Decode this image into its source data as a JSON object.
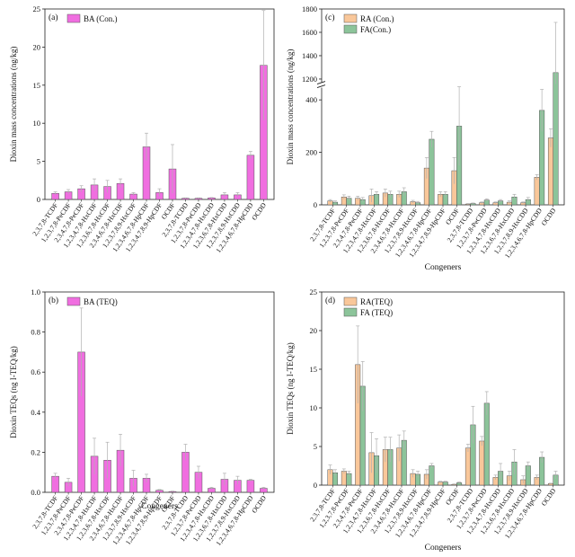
{
  "colors": {
    "pink": "#f06ee0",
    "orange": "#f9c79a",
    "green": "#8cc49a",
    "axis": "#222222",
    "error": "#b0b0b0"
  },
  "chart_data": [
    {
      "id": "a",
      "panel_label": "(a)",
      "type": "bar",
      "ylabel": "Dioxin mass concentrations (ng/kg)",
      "xlabel": "",
      "ylim": [
        0,
        25
      ],
      "yticks": [
        0,
        5,
        10,
        15,
        20,
        25
      ],
      "legend_position": "top-left",
      "categories": [
        "2,3,7,8-TCDF",
        "1,2,3,7,8-PeCDF",
        "2,3,4,7,8-PeCDF",
        "1,2,3,4,7,8-HxCDF",
        "1,2,3,6,7,8-HxCDF",
        "2,3,4,6,7,8-HxCDF",
        "1,2,3,7,8,9-HxCDF",
        "1,2,3,4,6,7,8-HpCDF",
        "1,2,3,4,7,8,9-HpCDF",
        "OCDF",
        "2,3,7,8-TCDD",
        "1,2,3,7,8-PeCDD",
        "1,2,3,4,7,8-HxCDD",
        "1,2,3,6,7,8-HxCDD",
        "1,2,3,7,8,9-HxCDD",
        "1,2,3,4,6,7,8-HpCDD",
        "OCDD"
      ],
      "series": [
        {
          "name": "BA (Con.)",
          "color": "#f06ee0",
          "values": [
            0.8,
            1.0,
            1.4,
            1.9,
            1.7,
            2.1,
            0.7,
            6.9,
            0.9,
            4.0,
            0.15,
            0.15,
            0.2,
            0.6,
            0.6,
            5.8,
            17.6
          ],
          "errors": [
            0.2,
            0.3,
            0.4,
            0.8,
            0.8,
            0.6,
            0.2,
            1.8,
            0.5,
            3.2,
            0.05,
            0.05,
            0.05,
            0.3,
            0.3,
            0.5,
            7.2
          ]
        }
      ]
    },
    {
      "id": "c",
      "panel_label": "(c)",
      "type": "bar",
      "ylabel": "Dioxin mass concentrations (ng/kg)",
      "xlabel": "Congeners",
      "ylim": [
        0,
        1800
      ],
      "axis_break": [
        450,
        1180
      ],
      "yticks": [
        0,
        200,
        400,
        1200,
        1400,
        1600,
        1800
      ],
      "legend_position": "top-left",
      "categories": [
        "2,3,7,8-TCDF",
        "1,2,3,7,8-PeCDF",
        "2,3,4,7,8-PeCDF",
        "1,2,3,4,7,8-HxCDF",
        "1,2,3,6,7,8-HxCDF",
        "2,3,4,6,7,8-HxCDF",
        "1,2,3,7,8,9-HxCDF",
        "1,2,3,4,6,7,8-HpCDF",
        "1,2,3,4,7,8,9-HpCDF",
        "OCDF",
        "2,3,7,8-TCDD",
        "1,2,3,7,8-PeCDD",
        "1,2,3,4,7,8-HxCDD",
        "1,2,3,6,7,8-HxCDD",
        "1,2,3,7,8,9-HxCDD",
        "1,2,3,4,6,7,8-HpCDD",
        "OCDD"
      ],
      "series": [
        {
          "name": "RA (Con.)",
          "color": "#f9c79a",
          "values": [
            15,
            30,
            25,
            35,
            45,
            40,
            12,
            140,
            40,
            130,
            3,
            8,
            8,
            10,
            8,
            105,
            255
          ],
          "errors": [
            5,
            8,
            8,
            25,
            15,
            12,
            5,
            40,
            10,
            50,
            2,
            3,
            3,
            5,
            3,
            10,
            35
          ]
        },
        {
          "name": "FA(Con.)",
          "color": "#8cc49a",
          "values": [
            10,
            25,
            20,
            40,
            40,
            50,
            8,
            250,
            40,
            300,
            5,
            18,
            15,
            30,
            20,
            360,
            1255
          ],
          "errors": [
            5,
            8,
            8,
            10,
            12,
            15,
            5,
            30,
            10,
            150,
            2,
            5,
            5,
            10,
            8,
            80,
            430
          ]
        }
      ]
    },
    {
      "id": "b",
      "panel_label": "(b)",
      "type": "bar",
      "ylabel": "Dioxin TEQs (ng I-TEQ/kg)",
      "xlabel": "Congeners",
      "ylim": [
        0,
        1.0
      ],
      "yticks": [
        0.0,
        0.2,
        0.4,
        0.6,
        0.8,
        1.0
      ],
      "legend_position": "top-left",
      "categories": [
        "2,3,7,8-TCDF",
        "1,2,3,7,8-PeCDF",
        "2,3,4,7,8-PeCDF",
        "1,2,3,4,7,8-HxCDF",
        "1,2,3,6,7,8-HxCDF",
        "2,3,4,6,7,8-HxCDF",
        "1,2,3,7,8,9-HxCDF",
        "1,2,3,4,6,7,8-HpCDF",
        "1,2,3,4,7,8,9-HpCDF",
        "OCDF",
        "2,3,7,8-TCDD",
        "1,2,3,7,8-PeCDD",
        "1,2,3,4,7,8-HxCDD",
        "1,2,3,6,7,8-HxCDD",
        "1,2,3,7,8,9-HxCDD",
        "1,2,3,4,6,7,8-HpCDD",
        "OCDD"
      ],
      "series": [
        {
          "name": "BA (TEQ)",
          "color": "#f06ee0",
          "values": [
            0.08,
            0.05,
            0.7,
            0.18,
            0.16,
            0.21,
            0.07,
            0.07,
            0.01,
            0.004,
            0.2,
            0.1,
            0.02,
            0.065,
            0.06,
            0.06,
            0.02
          ],
          "errors": [
            0.015,
            0.02,
            0.22,
            0.09,
            0.09,
            0.08,
            0.04,
            0.02,
            0.004,
            0.002,
            0.04,
            0.03,
            0.005,
            0.03,
            0.02,
            0.005,
            0.005
          ]
        }
      ]
    },
    {
      "id": "d",
      "panel_label": "(d)",
      "type": "bar",
      "ylabel": "Dioxin TEQs (ng I-TEQ/kg)",
      "xlabel": "Congeners",
      "ylim": [
        0,
        25
      ],
      "yticks": [
        0,
        5,
        10,
        15,
        20,
        25
      ],
      "legend_position": "top-left",
      "categories": [
        "2,3,7,8-TCDF",
        "1,2,3,7,8-PeCDF",
        "2,3,4,7,8-PeCDF",
        "1,2,3,4,7,8-HxCDF",
        "1,2,3,6,7,8-HxCDF",
        "2,3,4,6,7,8-HxCDF",
        "1,2,3,7,8,9-HxCDF",
        "1,2,3,4,6,7,8-HpCDF",
        "1,2,3,4,7,8,9-HpCDF",
        "OCDF",
        "2,3,7,8-TCDD",
        "1,2,3,7,8-PeCDD",
        "1,2,3,4,7,8-HxCDD",
        "1,2,3,6,7,8-HxCDD",
        "1,2,3,7,8,9-HxCDD",
        "1,2,3,4,6,7,8-HpCDD",
        "OCDD"
      ],
      "series": [
        {
          "name": "RA(TEQ)",
          "color": "#f9c79a",
          "values": [
            2.0,
            1.8,
            15.6,
            4.2,
            4.6,
            4.8,
            1.5,
            1.4,
            0.4,
            0.1,
            4.8,
            5.7,
            1.0,
            1.2,
            0.7,
            1.0,
            0.2
          ],
          "errors": [
            0.6,
            0.3,
            5.0,
            2.6,
            1.6,
            1.7,
            0.5,
            0.6,
            0.1,
            0.05,
            0.5,
            0.6,
            0.3,
            0.6,
            0.5,
            0.3,
            0.05
          ]
        },
        {
          "name": "FA (TEQ)",
          "color": "#8cc49a",
          "values": [
            1.6,
            1.5,
            12.8,
            3.8,
            4.6,
            5.8,
            1.4,
            2.5,
            0.4,
            0.3,
            7.8,
            10.6,
            1.8,
            3.0,
            2.5,
            3.6,
            1.3
          ],
          "errors": [
            0.4,
            0.3,
            3.2,
            2.2,
            1.6,
            1.2,
            0.4,
            0.3,
            0.1,
            0.1,
            2.4,
            1.5,
            1.0,
            1.6,
            0.5,
            0.7,
            0.5
          ]
        }
      ]
    }
  ]
}
